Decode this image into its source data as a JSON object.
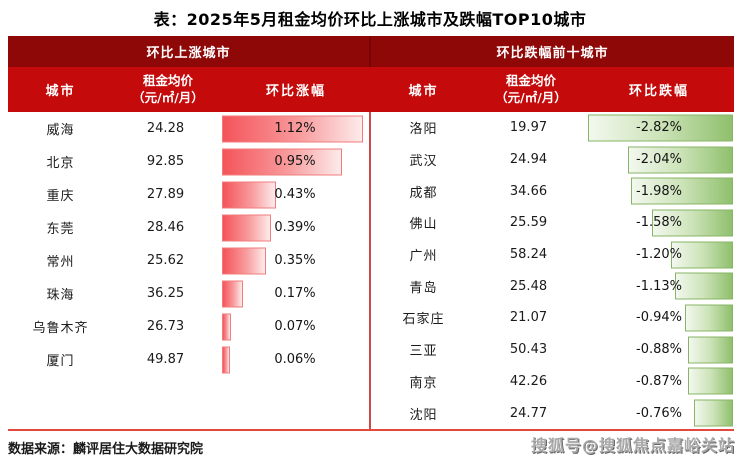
{
  "title": "表：2025年5月租金均价环比上涨城市及跌幅TOP10城市",
  "left_panel": {
    "band_title": "环比上涨城市",
    "columns": {
      "city": "城市",
      "price_line1": "租金均价",
      "price_line2": "（元/㎡/月）",
      "change": "环比涨幅"
    },
    "rows": [
      {
        "city": "威海",
        "price": "24.28",
        "change": "1.12%",
        "value": 1.12
      },
      {
        "city": "北京",
        "price": "92.85",
        "change": "0.95%",
        "value": 0.95
      },
      {
        "city": "重庆",
        "price": "27.89",
        "change": "0.43%",
        "value": 0.43
      },
      {
        "city": "东莞",
        "price": "28.46",
        "change": "0.39%",
        "value": 0.39
      },
      {
        "city": "常州",
        "price": "25.62",
        "change": "0.35%",
        "value": 0.35
      },
      {
        "city": "珠海",
        "price": "36.25",
        "change": "0.17%",
        "value": 0.17
      },
      {
        "city": "乌鲁木齐",
        "price": "26.73",
        "change": "0.07%",
        "value": 0.07
      },
      {
        "city": "厦门",
        "price": "49.87",
        "change": "0.06%",
        "value": 0.06
      }
    ]
  },
  "right_panel": {
    "band_title": "环比跌幅前十城市",
    "columns": {
      "city": "城市",
      "price_line1": "租金均价",
      "price_line2": "（元/㎡/月）",
      "change": "环比跌幅"
    },
    "rows": [
      {
        "city": "洛阳",
        "price": "19.97",
        "change": "-2.82%",
        "value": 2.82
      },
      {
        "city": "武汉",
        "price": "24.94",
        "change": "-2.04%",
        "value": 2.04
      },
      {
        "city": "成都",
        "price": "34.66",
        "change": "-1.98%",
        "value": 1.98
      },
      {
        "city": "佛山",
        "price": "25.59",
        "change": "-1.58%",
        "value": 1.58
      },
      {
        "city": "广州",
        "price": "58.24",
        "change": "-1.20%",
        "value": 1.2
      },
      {
        "city": "青岛",
        "price": "25.48",
        "change": "-1.13%",
        "value": 1.13
      },
      {
        "city": "石家庄",
        "price": "21.07",
        "change": "-0.94%",
        "value": 0.94
      },
      {
        "city": "三亚",
        "price": "50.43",
        "change": "-0.88%",
        "value": 0.88
      },
      {
        "city": "南京",
        "price": "42.26",
        "change": "-0.87%",
        "value": 0.87
      },
      {
        "city": "沈阳",
        "price": "24.77",
        "change": "-0.76%",
        "value": 0.76
      }
    ]
  },
  "footer": {
    "source": "数据来源：麟评居住大数据研究院",
    "watermark": "搜狐号@搜狐焦点嘉峪关站"
  },
  "colors": {
    "band_dark_red": "#8E0808",
    "header_red": "#C40A0A",
    "bar_red_start": "#F4545A",
    "bar_red_end": "#FDEBEB",
    "bar_green_start": "#F3F8EF",
    "bar_green_end": "#8FC06D",
    "divider_red": "#D04848",
    "bottom_line": "#E2483C"
  },
  "chart_data": [
    {
      "type": "bar",
      "title": "环比上涨城市",
      "orientation": "horizontal",
      "categories": [
        "威海",
        "北京",
        "重庆",
        "东莞",
        "常州",
        "珠海",
        "乌鲁木齐",
        "厦门"
      ],
      "series": [
        {
          "name": "租金均价（元/㎡/月）",
          "values": [
            24.28,
            92.85,
            27.89,
            28.46,
            25.62,
            36.25,
            26.73,
            49.87
          ]
        },
        {
          "name": "环比涨幅(%)",
          "values": [
            1.12,
            0.95,
            0.43,
            0.39,
            0.35,
            0.17,
            0.07,
            0.06
          ]
        }
      ],
      "xlim": [
        0,
        1.12
      ],
      "grid": false,
      "legend": "none"
    },
    {
      "type": "bar",
      "title": "环比跌幅前十城市",
      "orientation": "horizontal",
      "categories": [
        "洛阳",
        "武汉",
        "成都",
        "佛山",
        "广州",
        "青岛",
        "石家庄",
        "三亚",
        "南京",
        "沈阳"
      ],
      "series": [
        {
          "name": "租金均价（元/㎡/月）",
          "values": [
            19.97,
            24.94,
            34.66,
            25.59,
            58.24,
            25.48,
            21.07,
            50.43,
            42.26,
            24.77
          ]
        },
        {
          "name": "环比跌幅(%)",
          "values": [
            -2.82,
            -2.04,
            -1.98,
            -1.58,
            -1.2,
            -1.13,
            -0.94,
            -0.88,
            -0.87,
            -0.76
          ]
        }
      ],
      "xlim": [
        -2.82,
        0
      ],
      "grid": false,
      "legend": "none"
    }
  ]
}
